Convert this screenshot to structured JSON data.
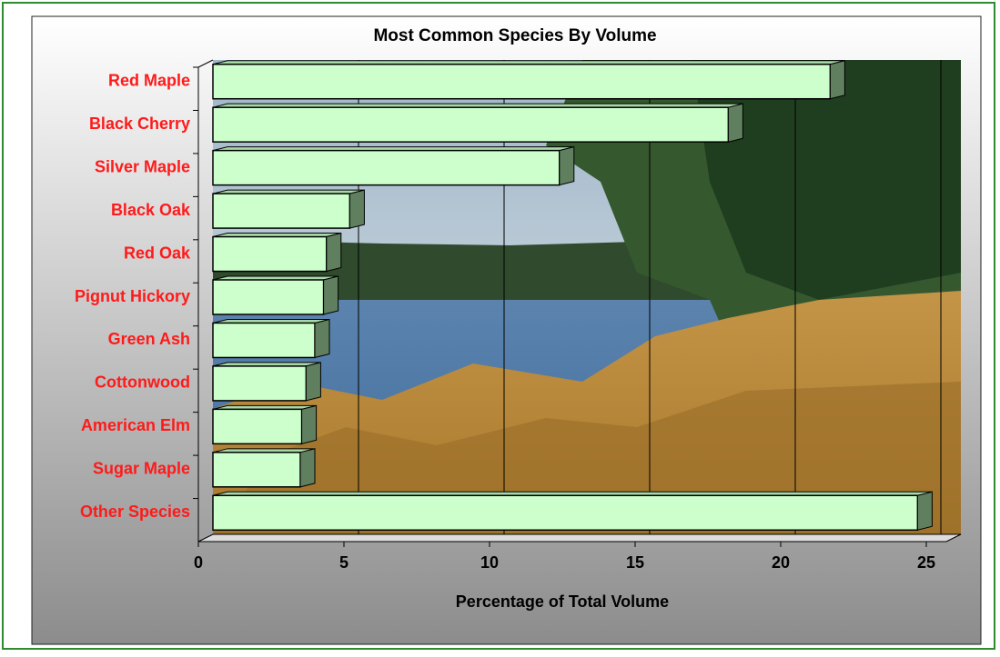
{
  "chart_data": {
    "type": "bar",
    "orientation": "horizontal",
    "title": "Most Common Species By Volume",
    "x_label": "Percentage of Total Volume",
    "categories": [
      "Red Maple",
      "Black Cherry",
      "Silver Maple",
      "Black Oak",
      "Red Oak",
      "Pignut Hickory",
      "Green Ash",
      "Cottonwood",
      "American Elm",
      "Sugar Maple",
      "Other Species"
    ],
    "values": [
      21.2,
      17.7,
      11.9,
      4.7,
      3.9,
      3.8,
      3.5,
      3.2,
      3.05,
      3.0,
      24.2
    ],
    "color": "#ccffcc",
    "xlim": [
      0,
      25
    ],
    "xticks": [
      0,
      5,
      10,
      15,
      20,
      25
    ],
    "grid": true
  }
}
